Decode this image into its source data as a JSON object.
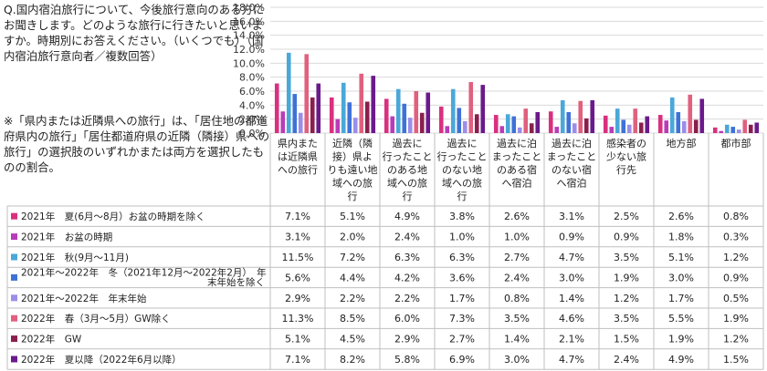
{
  "question": "Q.国内宿泊旅行について、今後旅行意向のある方にお聞きします。どのような旅行に行きたいと思いますか。時期別にお答えください。（いくつでも）（国内宿泊旅行意向者／複数回答）",
  "note": "※「県内または近隣県への旅行」は、「居住地の都道府県内の旅行」「居住都道府県の近隣（隣接）県への旅行」の選択肢のいずれかまたは両方を選択したものの割合。",
  "chart_data": {
    "type": "bar",
    "ylim": [
      0,
      18
    ],
    "yticks": [
      "0.0%",
      "2.0%",
      "4.0%",
      "6.0%",
      "8.0%",
      "10.0%",
      "12.0%",
      "14.0%",
      "16.0%",
      "18.0%"
    ],
    "grid": true,
    "categories": [
      [
        "県内また",
        "は近隣県",
        "への旅行"
      ],
      [
        "近隣（隣",
        "接）県よ",
        "りも遠い地",
        "域への旅",
        "行"
      ],
      [
        "過去に",
        "行ったこと",
        "のある地",
        "域への旅",
        "行"
      ],
      [
        "過去に",
        "行ったこと",
        "のない地",
        "域への旅",
        "行"
      ],
      [
        "過去に泊",
        "まったこと",
        "のある宿",
        "へ宿泊"
      ],
      [
        "過去に泊",
        "まったこと",
        "のない宿",
        "へ宿泊"
      ],
      [
        "感染者の",
        "少ない旅",
        "行先"
      ],
      [
        "地方部"
      ],
      [
        "都市部"
      ]
    ],
    "series": [
      {
        "name": "2021年　夏(6月～8月）お盆の時期を除く",
        "color": "#d9307f",
        "labels": [
          "7.1%",
          "5.1%",
          "4.9%",
          "3.8%",
          "2.6%",
          "3.1%",
          "2.5%",
          "2.6%",
          "0.8%"
        ],
        "values": [
          7.1,
          5.1,
          4.9,
          3.8,
          2.6,
          3.1,
          2.5,
          2.6,
          0.8
        ]
      },
      {
        "name": "2021年　お盆の時期",
        "color": "#b83cb8",
        "labels": [
          "3.1%",
          "2.0%",
          "2.4%",
          "1.0%",
          "1.0%",
          "0.9%",
          "0.9%",
          "1.8%",
          "0.3%"
        ],
        "values": [
          3.1,
          2.0,
          2.4,
          1.0,
          1.0,
          0.9,
          0.9,
          1.8,
          0.3
        ]
      },
      {
        "name": "2021年　秋(9月～11月)",
        "color": "#4aa8d8",
        "labels": [
          "11.5%",
          "7.2%",
          "6.3%",
          "6.3%",
          "2.7%",
          "4.7%",
          "3.5%",
          "5.1%",
          "1.2%"
        ],
        "values": [
          11.5,
          7.2,
          6.3,
          6.3,
          2.7,
          4.7,
          3.5,
          5.1,
          1.2
        ]
      },
      {
        "name": "2021年～2022年　冬（2021年12月～2022年2月）　年末年始を除く",
        "color": "#3f72d6",
        "labels": [
          "5.6%",
          "4.4%",
          "4.2%",
          "3.6%",
          "2.4%",
          "3.0%",
          "1.9%",
          "3.0%",
          "0.9%"
        ],
        "values": [
          5.6,
          4.4,
          4.2,
          3.6,
          2.4,
          3.0,
          1.9,
          3.0,
          0.9
        ]
      },
      {
        "name": "2021年～2022年　年末年始",
        "color": "#9b8ee8",
        "labels": [
          "2.9%",
          "2.2%",
          "2.2%",
          "1.7%",
          "0.8%",
          "1.4%",
          "1.2%",
          "1.7%",
          "0.5%"
        ],
        "values": [
          2.9,
          2.2,
          2.2,
          1.7,
          0.8,
          1.4,
          1.2,
          1.7,
          0.5
        ]
      },
      {
        "name": "2022年　春（3月～5月）GW除く",
        "color": "#e0607e",
        "labels": [
          "11.3%",
          "8.5%",
          "6.0%",
          "7.3%",
          "3.5%",
          "4.6%",
          "3.5%",
          "5.5%",
          "1.9%"
        ],
        "values": [
          11.3,
          8.5,
          6.0,
          7.3,
          3.5,
          4.6,
          3.5,
          5.5,
          1.9
        ]
      },
      {
        "name": "2022年　GW",
        "color": "#8a1f4d",
        "labels": [
          "5.1%",
          "4.5%",
          "2.9%",
          "2.7%",
          "1.4%",
          "2.1%",
          "1.5%",
          "1.9%",
          "1.2%"
        ],
        "values": [
          5.1,
          4.5,
          2.9,
          2.7,
          1.4,
          2.1,
          1.5,
          1.9,
          1.2
        ]
      },
      {
        "name": "2022年　夏以降（2022年6月以降）",
        "color": "#6a1a8a",
        "labels": [
          "7.1%",
          "8.2%",
          "5.8%",
          "6.9%",
          "3.0%",
          "4.7%",
          "2.4%",
          "4.9%",
          "1.5%"
        ],
        "values": [
          7.1,
          8.2,
          5.8,
          6.9,
          3.0,
          4.7,
          2.4,
          4.9,
          1.5
        ]
      }
    ]
  }
}
